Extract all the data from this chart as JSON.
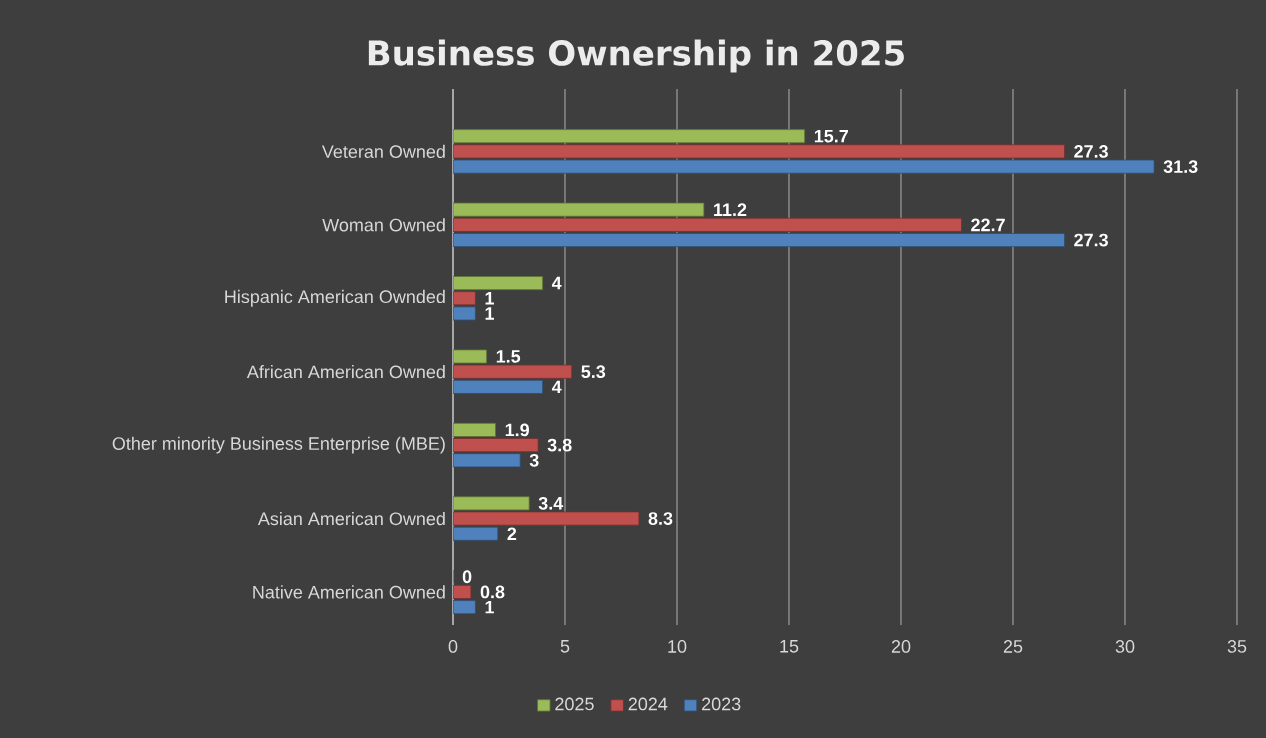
{
  "chart_data": {
    "type": "bar",
    "orientation": "horizontal",
    "title": "Business Ownership in 2025",
    "categories": [
      "Veteran Owned",
      "Woman Owned",
      "Hispanic American Ownded",
      "African American Owned",
      "Other minority Business Enterprise (MBE)",
      "Asian American Owned",
      "Native American Owned"
    ],
    "series": [
      {
        "name": "2025",
        "color": "#9bbb59",
        "values": [
          15.7,
          11.2,
          4,
          1.5,
          1.9,
          3.4,
          0
        ]
      },
      {
        "name": "2024",
        "color": "#c0504d",
        "values": [
          27.3,
          22.7,
          1,
          5.3,
          3.8,
          8.3,
          0.8
        ]
      },
      {
        "name": "2023",
        "color": "#4f81bd",
        "values": [
          31.3,
          27.3,
          1,
          4,
          3,
          2,
          1
        ]
      }
    ],
    "xlim": [
      0,
      35
    ],
    "xticks": [
      0,
      5,
      10,
      15,
      20,
      25,
      30,
      35
    ],
    "grid": "x",
    "legend": "bottom",
    "data_labels": true
  }
}
